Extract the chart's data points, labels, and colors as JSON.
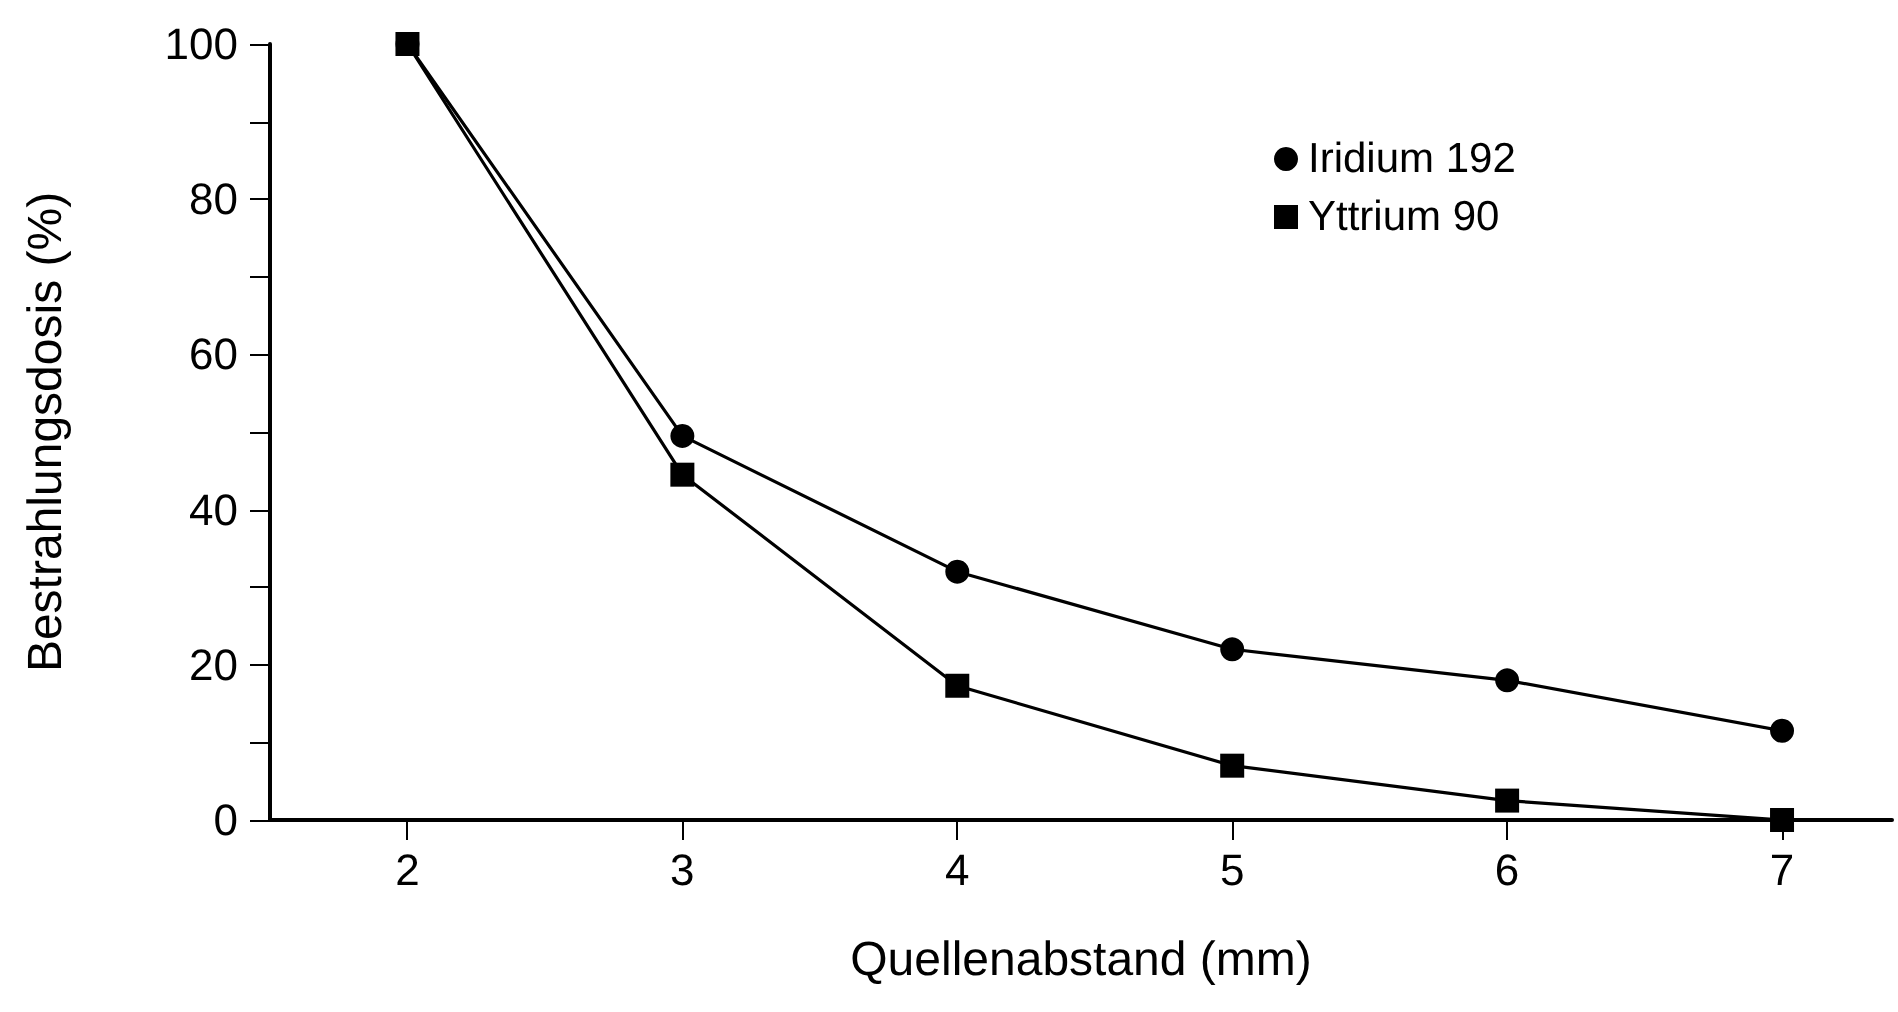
{
  "chart_data": {
    "type": "line",
    "xlabel": "Quellenabstand (mm)",
    "ylabel": "Bestrahlungsdosis (%)",
    "x": [
      2,
      3,
      4,
      5,
      6,
      7
    ],
    "series": [
      {
        "name": "Iridium 192",
        "color": "#000000",
        "marker": "circle",
        "values": [
          100,
          49.5,
          32,
          22,
          18,
          11.5
        ]
      },
      {
        "name": "Yttrium 90",
        "color": "#000000",
        "marker": "square",
        "values": [
          100,
          44.5,
          17.3,
          7,
          2.5,
          0
        ]
      }
    ],
    "xlim": [
      1.5,
      7.4
    ],
    "xticks": [
      2,
      3,
      4,
      5,
      6,
      7
    ],
    "ylim": [
      0,
      100
    ],
    "yticks": [
      0,
      {
        "value": 10,
        "label": null
      },
      20,
      {
        "value": 30,
        "label": null
      },
      40,
      {
        "value": 50,
        "label": null
      },
      60,
      {
        "value": 70,
        "label": null
      },
      80,
      {
        "value": 90,
        "label": null
      },
      100
    ],
    "grid": false,
    "legend": "top right",
    "line_style": "solid"
  }
}
